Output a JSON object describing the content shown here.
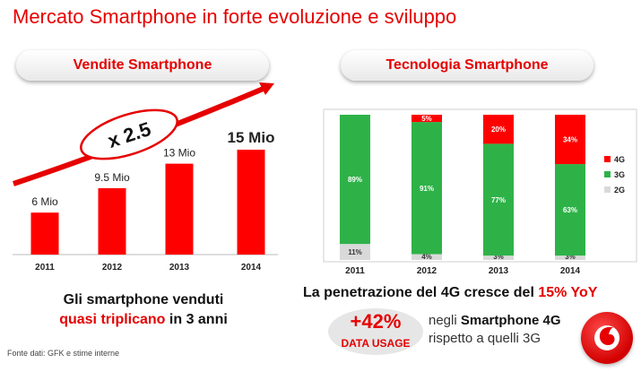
{
  "header": {
    "title": "Mercato Smartphone in forte evoluzione e sviluppo"
  },
  "left_panel": {
    "pill_label": "Vendite Smartphone",
    "multiplier": "x 2.5",
    "caption_line1": "Gli smartphone venduti",
    "caption_red": "quasi triplicano",
    "caption_rest": " in 3 anni"
  },
  "right_panel": {
    "pill_label": "Tecnologia Smartphone",
    "penetration_text": "La penetrazione del 4G cresce del ",
    "penetration_red": "15% YoY",
    "usage_big": "+42%",
    "usage_small": "DATA USAGE",
    "usage_line1_prefix": "negli ",
    "usage_line1_bold": "Smartphone 4G",
    "usage_line2": "rispetto a quelli 3G"
  },
  "footer": {
    "source": "Fonte dati: GFK e stime interne"
  },
  "colors": {
    "accent": "#e60000",
    "bar_red": "#ff0000",
    "green": "#2eb248",
    "gray": "#d9d9d9"
  },
  "chart_data": [
    {
      "type": "bar",
      "categories": [
        "2011",
        "2012",
        "2013",
        "2014"
      ],
      "values": [
        6,
        9.5,
        13,
        15
      ],
      "data_labels": [
        "6 Mio",
        "9.5 Mio",
        "13 Mio",
        "15 Mio"
      ],
      "ylim": [
        0,
        20
      ]
    },
    {
      "type": "bar",
      "stacked": true,
      "categories": [
        "2011",
        "2012",
        "2013",
        "2014"
      ],
      "series": [
        {
          "name": "2G",
          "values": [
            11,
            4,
            3,
            3
          ],
          "color": "#d9d9d9"
        },
        {
          "name": "3G",
          "values": [
            89,
            91,
            77,
            63
          ],
          "color": "#2eb248"
        },
        {
          "name": "4G",
          "values": [
            0,
            5,
            20,
            34
          ],
          "color": "#ff0000"
        }
      ],
      "data_labels": [
        [
          "11%",
          "89%",
          ""
        ],
        [
          "4%",
          "91%",
          "5%"
        ],
        [
          "3%",
          "77%",
          "20%"
        ],
        [
          "3%",
          "63%",
          "34%"
        ]
      ],
      "ylim": [
        0,
        100
      ],
      "legend": "right"
    }
  ]
}
